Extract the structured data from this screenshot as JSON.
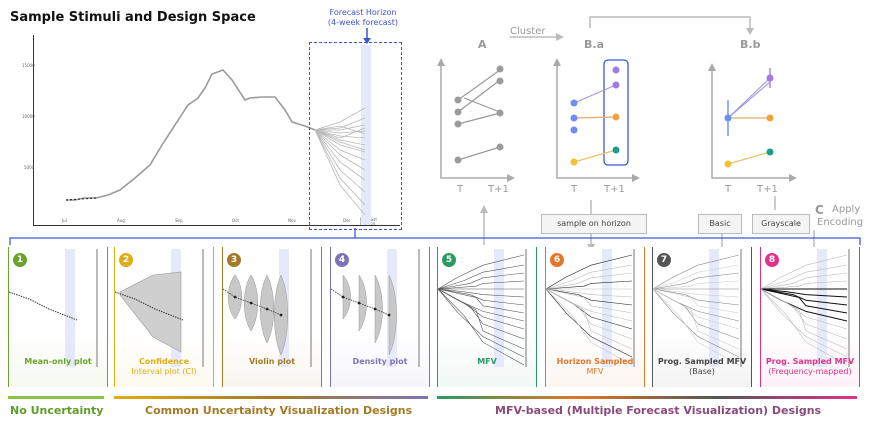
{
  "title": "Sample Stimuli and Design Space",
  "horizon_label": [
    "Forecast Horizon",
    "(4-week forecast)"
  ],
  "main_chart": {
    "yticks": [
      "15000",
      "10000",
      "5000"
    ],
    "xticks": [
      "Jul",
      "Aug",
      "Sep",
      "Oct",
      "Nov",
      "Dec",
      "Forecast Horizon"
    ]
  },
  "cluster_label": "Cluster",
  "diagrams": {
    "a_label": "A",
    "ba_label": "B.a",
    "bb_label": "B.b",
    "t_label": "T",
    "t1_label": "T+1"
  },
  "sample_on_horizon": "sample on horizon",
  "apply_encoding": {
    "letter": "C",
    "text": [
      "Apply",
      "Encoding"
    ],
    "basic": "Basic",
    "grayscale": "Grayscale"
  },
  "panels": [
    {
      "num": "1",
      "name": [
        "Mean-only plot"
      ],
      "color": "#6aa42b"
    },
    {
      "num": "2",
      "name": [
        "Confidence",
        "Interval plot (CI)"
      ],
      "color": "#e0ad14"
    },
    {
      "num": "3",
      "name": [
        "Violin plot"
      ],
      "color": "#a57a26"
    },
    {
      "num": "4",
      "name": [
        "Density plot"
      ],
      "color": "#7b74b8"
    },
    {
      "num": "5",
      "name": [
        "MFV"
      ],
      "color": "#2a9a63"
    },
    {
      "num": "6",
      "name": [
        "Horizon Sampled",
        "MFV"
      ],
      "color": "#e2762a"
    },
    {
      "num": "7",
      "name": [
        "Prog. Sampled MFV",
        "(Base)"
      ],
      "color": "#555555"
    },
    {
      "num": "8",
      "name": [
        "Prog. Sampled MFV",
        "(Frequency-mapped)"
      ],
      "color": "#e2338a"
    }
  ],
  "categories": [
    {
      "label": "No Uncertainty",
      "color": "#5e9e28"
    },
    {
      "label": "Common Uncertainty Visualization Designs",
      "color": "#a57a26"
    },
    {
      "label": "MFV-based (Multiple Forecast Visualization) Designs",
      "color": "#8a4a7a"
    }
  ]
}
